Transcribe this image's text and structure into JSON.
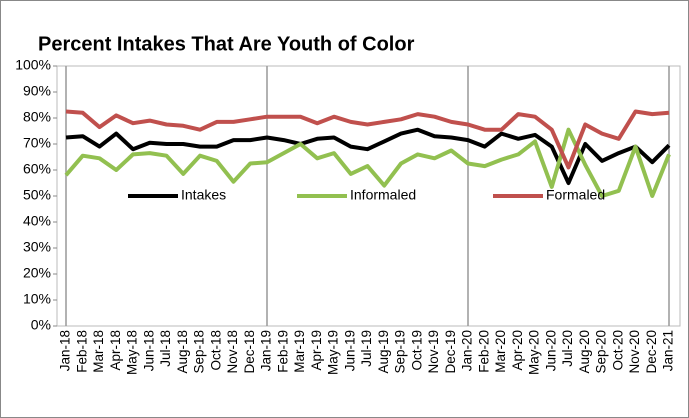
{
  "chart_data": {
    "type": "line",
    "title": "Percent Intakes That Are Youth of Color",
    "categories": [
      "Jan-18",
      "Feb-18",
      "Mar-18",
      "Apr-18",
      "May-18",
      "Jun-18",
      "Jul-18",
      "Aug-18",
      "Sep-18",
      "Oct-18",
      "Nov-18",
      "Dec-18",
      "Jan-19",
      "Feb-19",
      "Mar-19",
      "Apr-19",
      "May-19",
      "Jun-19",
      "Jul-19",
      "Aug-19",
      "Sep-19",
      "Oct-19",
      "Nov-19",
      "Dec-19",
      "Jan-20",
      "Feb-20",
      "Mar-20",
      "Apr-20",
      "May-20",
      "Jun-20",
      "Jul-20",
      "Aug-20",
      "Sep-20",
      "Oct-20",
      "Nov-20",
      "Dec-20",
      "Jan-21"
    ],
    "series": [
      {
        "name": "Intakes",
        "color": "#000000",
        "values": [
          72.5,
          73,
          69,
          74,
          68,
          70.5,
          70,
          70,
          69,
          69,
          71.5,
          71.5,
          72.5,
          71.5,
          70,
          72,
          72.5,
          69,
          68,
          71,
          74,
          75.5,
          73,
          72.5,
          71.5,
          69,
          74,
          72,
          73.5,
          69,
          55,
          70,
          63.5,
          66.5,
          69,
          63,
          69.5
        ]
      },
      {
        "name": "Informaled",
        "color": "#92c050",
        "values": [
          58,
          65.5,
          64.5,
          60,
          66,
          66.5,
          65.5,
          58.5,
          65.5,
          63.5,
          55.5,
          62.5,
          63,
          66.5,
          70,
          64.5,
          66.5,
          58.5,
          61.5,
          54,
          62.5,
          66,
          64.5,
          67.5,
          62.5,
          61.5,
          64,
          66,
          71,
          53.5,
          75.5,
          62,
          50,
          52,
          69,
          50,
          66
        ]
      },
      {
        "name": "Formaled",
        "color": "#c0504d",
        "values": [
          82.5,
          82,
          76.5,
          81,
          78,
          79,
          77.5,
          77,
          75.5,
          78.5,
          78.5,
          79.5,
          80.5,
          80.5,
          80.5,
          78,
          80.5,
          78.5,
          77.5,
          78.5,
          79.5,
          81.5,
          80.5,
          78.5,
          77.5,
          75.5,
          75.5,
          81.5,
          80.5,
          75.5,
          61,
          77.5,
          74,
          72,
          82.5,
          81.5,
          82
        ]
      }
    ],
    "ylim": [
      0,
      100
    ],
    "yticks": [
      {
        "value": 0,
        "label": "0%"
      },
      {
        "value": 10,
        "label": "10%"
      },
      {
        "value": 20,
        "label": "20%"
      },
      {
        "value": 30,
        "label": "30%"
      },
      {
        "value": 40,
        "label": "40%"
      },
      {
        "value": 50,
        "label": "50%"
      },
      {
        "value": 60,
        "label": "60%"
      },
      {
        "value": 70,
        "label": "70%"
      },
      {
        "value": 80,
        "label": "80%"
      },
      {
        "value": 90,
        "label": "90%"
      },
      {
        "value": 100,
        "label": "100%"
      }
    ]
  }
}
